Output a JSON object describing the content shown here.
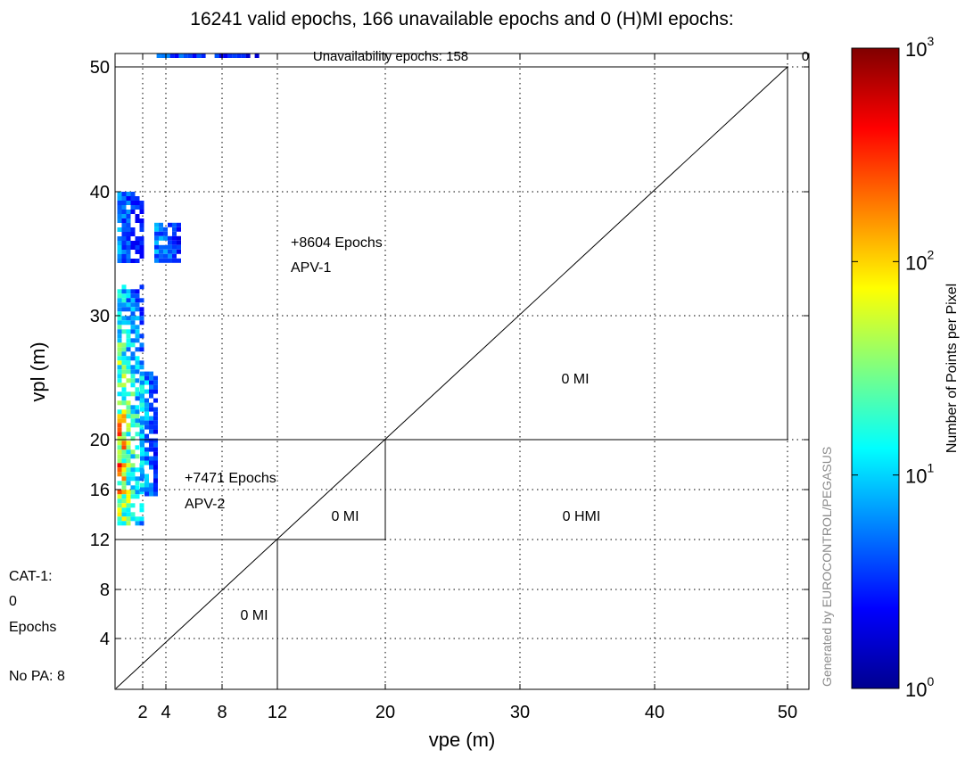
{
  "chart_data": {
    "type": "heatmap",
    "title": "16241 valid epochs, 166 unavailable epochs and 0 (H)MI epochs:",
    "xlabel": "vpe (m)",
    "ylabel": "vpl (m)",
    "x_ticks": [
      2,
      4,
      8,
      12,
      20,
      30,
      40,
      50
    ],
    "y_ticks": [
      4,
      8,
      12,
      16,
      20,
      30,
      40,
      50
    ],
    "x_scale": "piecewise-linear",
    "y_scale": "piecewise-linear",
    "xlim": [
      0,
      52
    ],
    "ylim": [
      0,
      52
    ],
    "grid": true,
    "regions": {
      "unavailability": "Unavailability epochs: 158",
      "unavailability_mi": "0",
      "apv1_epochs": "+8604 Epochs",
      "apv1_name": "APV-1",
      "apv1_mi": "0 MI",
      "apv2_epochs": "+7471 Epochs",
      "apv2_name": "APV-2",
      "apv2_mi": "0 MI",
      "hmi": "0 HMI",
      "cat1_mi": "0 MI"
    },
    "left_annotations": {
      "cat1_line1": "CAT-1:",
      "cat1_line2": "0",
      "cat1_line3": "Epochs",
      "no_pa": "No PA: 8"
    },
    "watermark": "Generated by EUROCONTROL/PEGASUS",
    "colorbar": {
      "label": "Number of Points per Pixel",
      "scale": "log",
      "ticks": [
        {
          "value": 1,
          "base": "10",
          "exp": "0"
        },
        {
          "value": 10,
          "base": "10",
          "exp": "1"
        },
        {
          "value": 100,
          "base": "10",
          "exp": "2"
        },
        {
          "value": 1000,
          "base": "10",
          "exp": "3"
        }
      ],
      "range": [
        1,
        1000
      ],
      "colormap": "jet"
    },
    "heatmap_clusters": [
      {
        "name": "main-column",
        "x_range": [
          0.1,
          1.8
        ],
        "y_range": [
          13.2,
          32.5
        ],
        "peak_log10": 2.3
      },
      {
        "name": "right-tail",
        "x_range": [
          1.8,
          3.0
        ],
        "y_range": [
          15.5,
          25.5
        ],
        "peak_log10": 1.3
      },
      {
        "name": "upper-column",
        "x_range": [
          0.1,
          2.0
        ],
        "y_range": [
          34.5,
          40.0
        ],
        "peak_log10": 1.0
      },
      {
        "name": "upper-right-patch",
        "x_range": [
          3.0,
          5.0
        ],
        "y_range": [
          34.3,
          37.5
        ],
        "peak_log10": 1.1
      },
      {
        "name": "top-strip",
        "x_range": [
          3.2,
          10.6
        ],
        "y_range": [
          51.5,
          52.0
        ],
        "peak_log10": 0.9
      }
    ]
  }
}
